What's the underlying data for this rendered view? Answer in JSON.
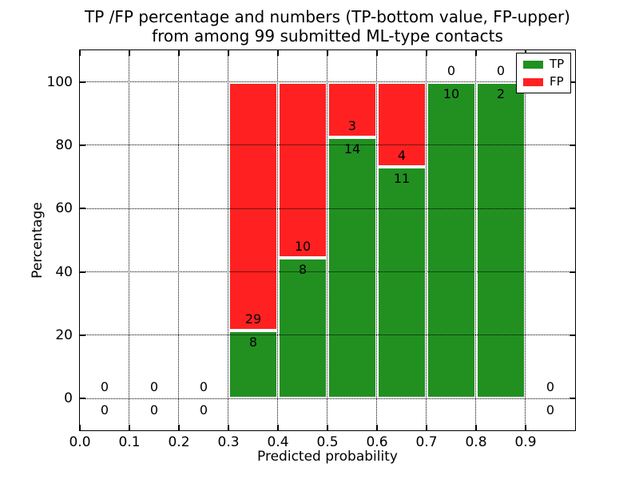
{
  "title": {
    "line1": "TP /FP percentage and numbers (TP-bottom value, FP-upper)",
    "line2": "from among 99 submitted ML-type contacts"
  },
  "colors": {
    "tp": "#219021",
    "fp": "#ff2121",
    "bar_edge": "#ffffff",
    "grid": "#000000",
    "background": "#ffffff"
  },
  "chart_data": {
    "type": "bar",
    "stacked": true,
    "title": "TP /FP percentage and numbers (TP-bottom value, FP-upper) from among 99 submitted ML-type contacts",
    "xlabel": "Predicted probability",
    "ylabel": "Percentage",
    "xlim": [
      0.0,
      1.0
    ],
    "ylim": [
      -10,
      110
    ],
    "xticks": [
      0.0,
      0.1,
      0.2,
      0.3,
      0.4,
      0.5,
      0.6,
      0.7,
      0.8,
      0.9
    ],
    "yticks": [
      0,
      20,
      40,
      60,
      80,
      100
    ],
    "grid": true,
    "grid_style": "dotted",
    "total_contacts": 99,
    "legend": {
      "position": "upper right",
      "entries": [
        {
          "label": "TP",
          "series": "tp"
        },
        {
          "label": "FP",
          "series": "fp"
        }
      ]
    },
    "bins": [
      {
        "x0": 0.0,
        "x1": 0.1,
        "tp": 0,
        "fp": 0,
        "tp_pct": 0,
        "fp_pct": 0
      },
      {
        "x0": 0.1,
        "x1": 0.2,
        "tp": 0,
        "fp": 0,
        "tp_pct": 0,
        "fp_pct": 0
      },
      {
        "x0": 0.2,
        "x1": 0.3,
        "tp": 0,
        "fp": 0,
        "tp_pct": 0,
        "fp_pct": 0
      },
      {
        "x0": 0.3,
        "x1": 0.4,
        "tp": 8,
        "fp": 29,
        "tp_pct": 21.6,
        "fp_pct": 78.4
      },
      {
        "x0": 0.4,
        "x1": 0.5,
        "tp": 8,
        "fp": 10,
        "tp_pct": 44.4,
        "fp_pct": 55.6
      },
      {
        "x0": 0.5,
        "x1": 0.6,
        "tp": 14,
        "fp": 3,
        "tp_pct": 82.4,
        "fp_pct": 17.6
      },
      {
        "x0": 0.6,
        "x1": 0.7,
        "tp": 11,
        "fp": 4,
        "tp_pct": 73.3,
        "fp_pct": 26.7
      },
      {
        "x0": 0.7,
        "x1": 0.8,
        "tp": 10,
        "fp": 0,
        "tp_pct": 100,
        "fp_pct": 0
      },
      {
        "x0": 0.8,
        "x1": 0.9,
        "tp": 2,
        "fp": 0,
        "tp_pct": 100,
        "fp_pct": 0
      },
      {
        "x0": 0.9,
        "x1": 1.0,
        "tp": 0,
        "fp": 0,
        "tp_pct": 0,
        "fp_pct": 0
      }
    ]
  }
}
